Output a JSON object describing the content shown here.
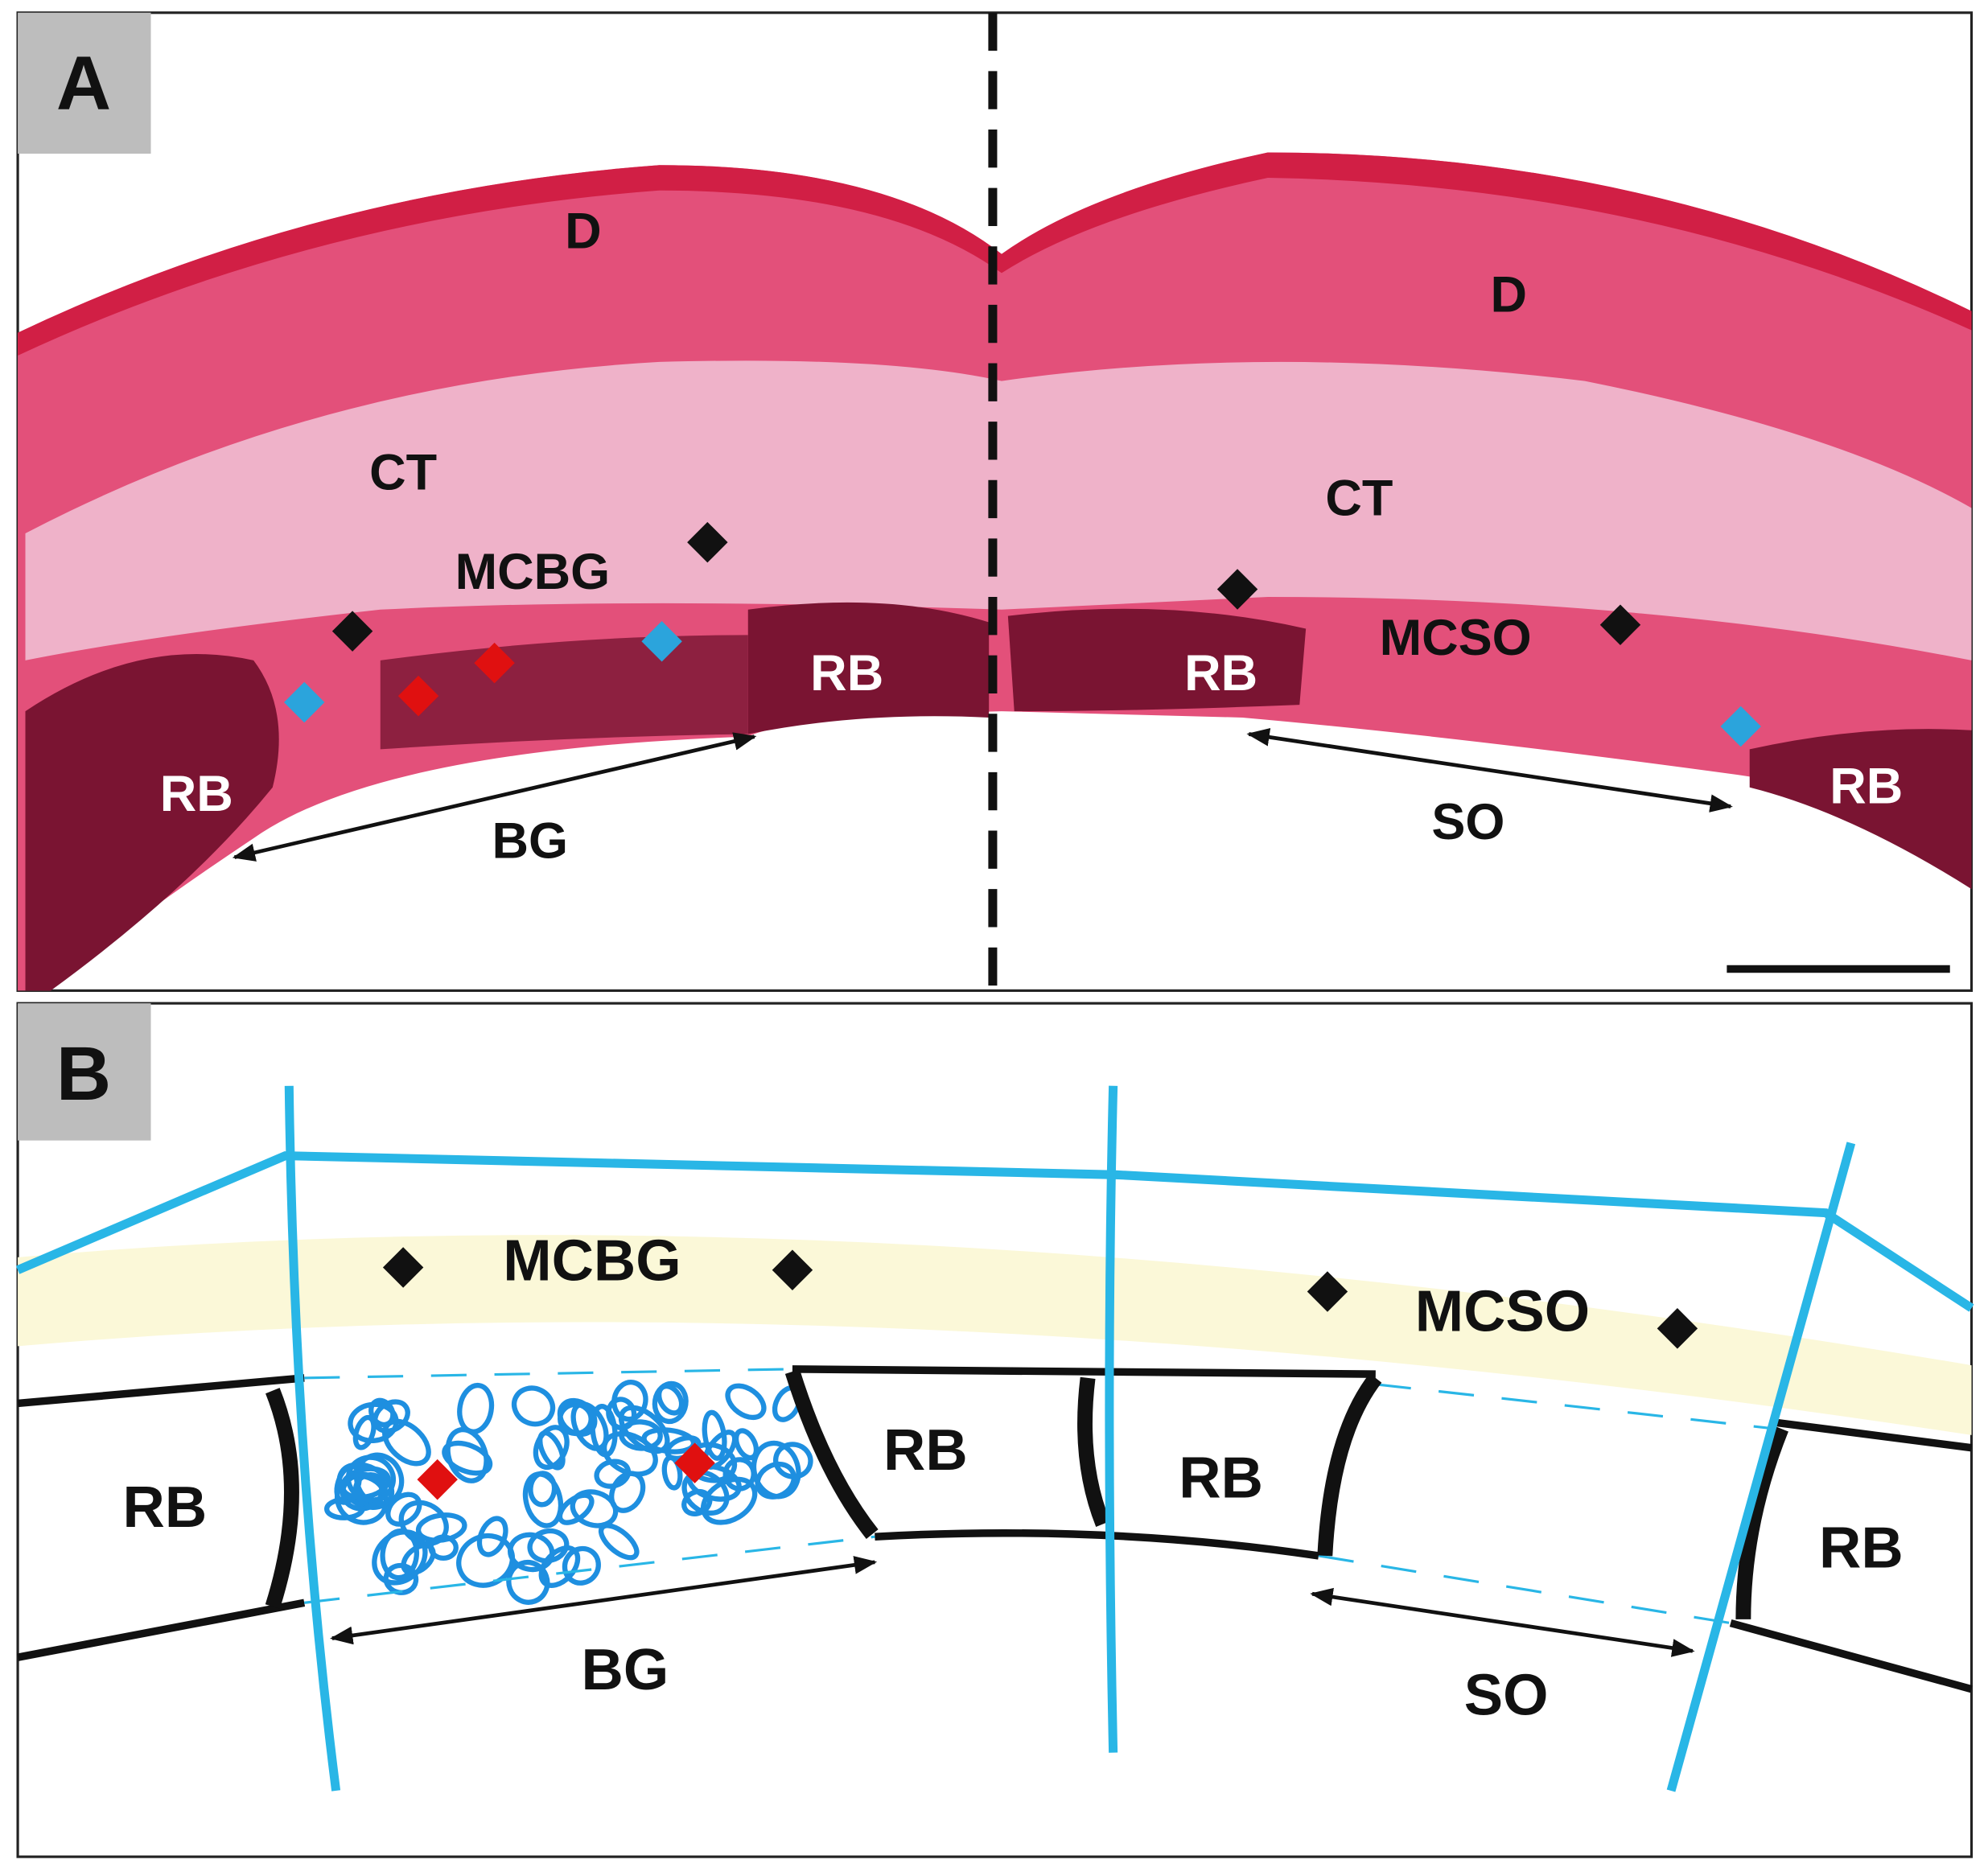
{
  "panel_a": {
    "label": "A",
    "labels": [
      "D",
      "D",
      "CT",
      "CT",
      "MCBG",
      "MCSO",
      "RB",
      "RB",
      "RB",
      "RB",
      "BG",
      "SO"
    ]
  },
  "panel_b": {
    "label": "B",
    "labels": [
      "MCBG",
      "MCSO",
      "RB",
      "RB",
      "RB",
      "RB",
      "BG",
      "SO"
    ]
  }
}
